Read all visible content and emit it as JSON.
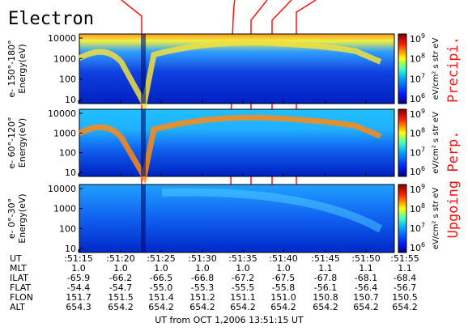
{
  "title": "Electron",
  "panels": [
    {
      "label": "e- 150°-180°",
      "axis_label": "Energy(eV)",
      "yticks": [
        "10000",
        "1000",
        "100",
        "10"
      ]
    },
    {
      "label": "e- 60°-120°",
      "axis_label": "Energy(eV)",
      "yticks": [
        "10000",
        "1000",
        "100",
        "10"
      ]
    },
    {
      "label": "e- 0°-30°",
      "axis_label": "Energy(eV)",
      "yticks": [
        "10000",
        "1000",
        "100",
        "10"
      ]
    }
  ],
  "colorbar": {
    "ticks": [
      {
        "base": "10",
        "exp": "9"
      },
      {
        "base": "10",
        "exp": "8"
      },
      {
        "base": "10",
        "exp": "7"
      },
      {
        "base": "10",
        "exp": "6"
      }
    ],
    "unit": "eV/cm² s str eV"
  },
  "side_labels": [
    "Precipi.",
    "Upgoing Perp."
  ],
  "table": {
    "row_labels": [
      "UT",
      "MLT",
      "ILAT",
      "FLAT",
      "FLON",
      "ALT"
    ],
    "rows": [
      [
        ":51:15",
        ":51:20",
        ":51:25",
        ":51:30",
        ":51:35",
        ":51:40",
        ":51:45",
        ":51:50",
        ":51:55"
      ],
      [
        "1.0",
        "1.0",
        "1.0",
        "1.0",
        "1.0",
        "1.0",
        "1.1",
        "1.1",
        "1.1"
      ],
      [
        "-65.9",
        "-66.2",
        "-66.5",
        "-66.8",
        "-67.2",
        "-67.5",
        "-67.8",
        "-68.1",
        "-68.4"
      ],
      [
        "-54.4",
        "-54.7",
        "-55.0",
        "-55.3",
        "-55.5",
        "-55.8",
        "-56.1",
        "-56.4",
        "-56.7"
      ],
      [
        "151.7",
        "151.5",
        "151.4",
        "151.2",
        "151.1",
        "151.0",
        "150.8",
        "150.7",
        "150.5"
      ],
      [
        "654.3",
        "654.2",
        "654.2",
        "654.2",
        "654.2",
        "654.2",
        "654.2",
        "654.2",
        "654.2"
      ]
    ]
  },
  "footer": "UT from OCT 1,2006 13:51:15 UT"
}
